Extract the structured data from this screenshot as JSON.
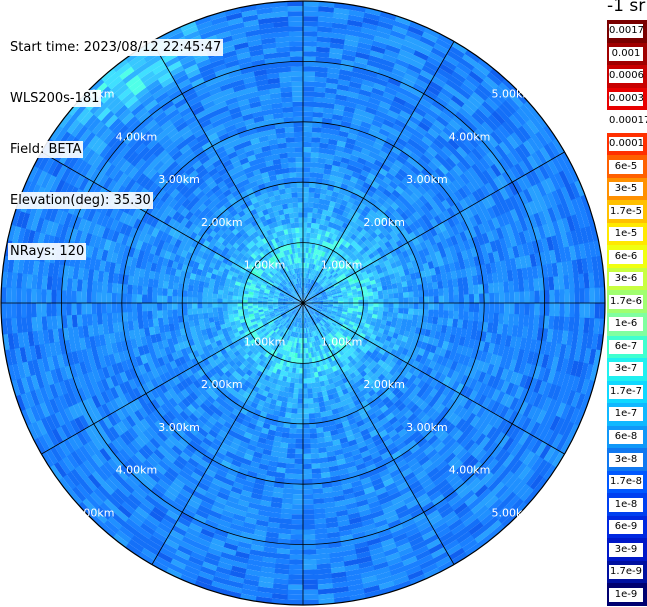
{
  "info": {
    "start_time": "Start time: 2023/08/12 22:45:47",
    "instrument": "WLS200s-181",
    "field": "Field: BETA",
    "elevation": "Elevation(deg): 35.30",
    "nrays": "NRays: 120"
  },
  "chart_data": {
    "type": "heatmap",
    "projection": "polar-ppi",
    "field": "BETA",
    "units": "-1 sr",
    "elevation_deg": 35.3,
    "n_rays": 120,
    "range_rings_km": [
      1.0,
      2.0,
      3.0,
      4.0,
      5.0
    ],
    "ring_labels": [
      "1.00km",
      "2.00km",
      "3.00km",
      "4.00km",
      "5.00km"
    ],
    "max_range_km": 5.0,
    "azimuth_spokes_deg": [
      0,
      30,
      60,
      90,
      120,
      150,
      180,
      210,
      240,
      270,
      300,
      330
    ],
    "colorbar": {
      "labels": [
        "0.0017",
        "0.001",
        "0.0006",
        "0.0003",
        "0.00017",
        "0.0001",
        "6e-5",
        "3e-5",
        "1.7e-5",
        "1e-5",
        "6e-6",
        "3e-6",
        "1.7e-6",
        "1e-6",
        "6e-7",
        "3e-7",
        "1.7e-7",
        "1e-7",
        "6e-8",
        "3e-8",
        "1.7e-8",
        "1e-8",
        "6e-9",
        "3e-9",
        "1.7e-9",
        "1e-9"
      ],
      "colors": [
        "#7a0000",
        "#a00000",
        "#c80000",
        "#e80000",
        "#ffffff",
        "#ff3000",
        "#ff6000",
        "#ff9000",
        "#ffc000",
        "#ffe800",
        "#f0ff10",
        "#c8ff40",
        "#a0ff70",
        "#80ffa0",
        "#40ffd0",
        "#20f0f0",
        "#10d8ff",
        "#10b8ff",
        "#1098f8",
        "#1078f0",
        "#0058ff",
        "#0040f0",
        "#0028e0",
        "#0018c8",
        "#0010a0",
        "#000070"
      ]
    }
  }
}
